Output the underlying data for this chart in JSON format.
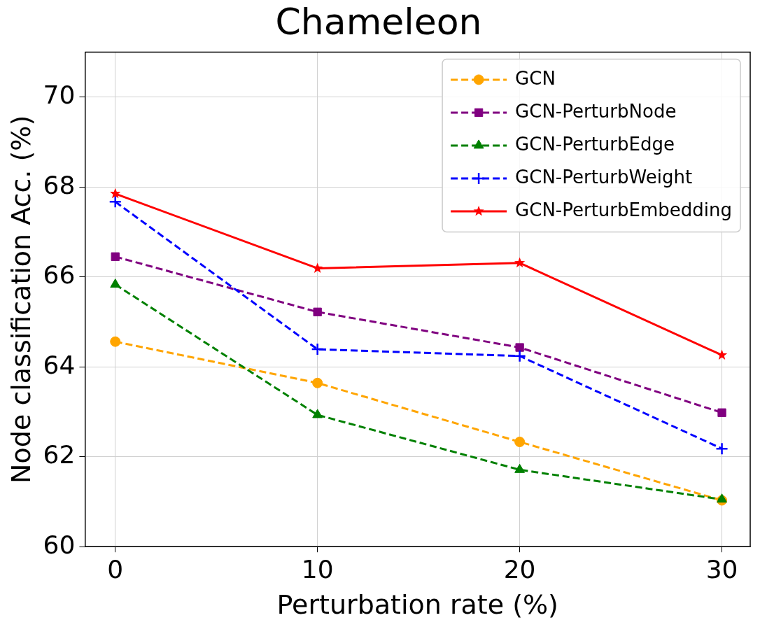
{
  "chart_data": {
    "type": "line",
    "title": "Chameleon",
    "xlabel": "Perturbation rate (%)",
    "ylabel": "Node classification Acc. (%)",
    "x": [
      0,
      10,
      20,
      30
    ],
    "xlim": [
      -1.5,
      31.4
    ],
    "xticks": [
      0,
      10,
      20,
      30
    ],
    "ylim": [
      60,
      71
    ],
    "yticks": [
      60,
      62,
      64,
      66,
      68,
      70
    ],
    "grid": true,
    "legend": "top right",
    "series": [
      {
        "name": "GCN",
        "color": "#ffa500",
        "marker": "circle",
        "line_style": "dashed",
        "values": [
          64.56,
          63.64,
          62.33,
          61.03
        ]
      },
      {
        "name": "GCN-PerturbNode",
        "color": "#800080",
        "marker": "square",
        "line_style": "dashed",
        "values": [
          66.45,
          65.22,
          64.43,
          62.98
        ]
      },
      {
        "name": "GCN-PerturbEdge",
        "color": "#008000",
        "marker": "triangle",
        "line_style": "dashed",
        "values": [
          65.83,
          62.93,
          61.71,
          61.05
        ]
      },
      {
        "name": "GCN-PerturbWeight",
        "color": "#0000ff",
        "marker": "cross",
        "line_style": "dashed",
        "values": [
          67.67,
          64.39,
          64.24,
          62.18
        ]
      },
      {
        "name": "GCN-PerturbEmbedding",
        "color": "#ff0000",
        "marker": "star",
        "line_style": "solid",
        "values": [
          67.85,
          66.19,
          66.31,
          64.26
        ]
      }
    ]
  }
}
